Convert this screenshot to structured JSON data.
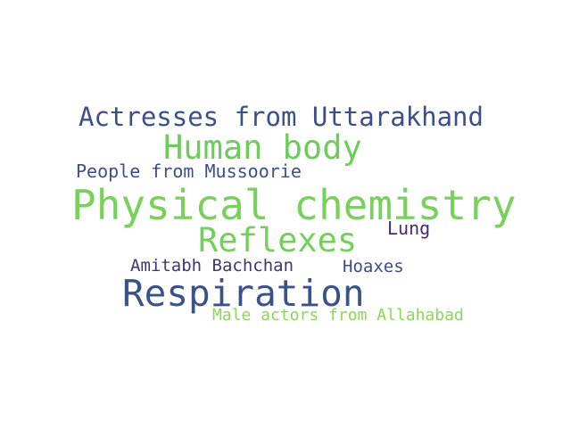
{
  "word_cloud": {
    "words": [
      {
        "text": "Actresses from Uttarakhand",
        "color": "#3b4f8a"
      },
      {
        "text": "Human body",
        "color": "#6ccd59"
      },
      {
        "text": "People from Mussoorie",
        "color": "#3d4e8a"
      },
      {
        "text": "Physical chemistry",
        "color": "#77d15a"
      },
      {
        "text": "Reflexes",
        "color": "#73d05a"
      },
      {
        "text": "Lung",
        "color": "#472a70"
      },
      {
        "text": "Amitabh Bachchan",
        "color": "#413579"
      },
      {
        "text": "Hoaxes",
        "color": "#3f4b89"
      },
      {
        "text": "Respiration",
        "color": "#3a528b"
      },
      {
        "text": "Male actors from Allahabad",
        "color": "#8ad952"
      }
    ]
  }
}
